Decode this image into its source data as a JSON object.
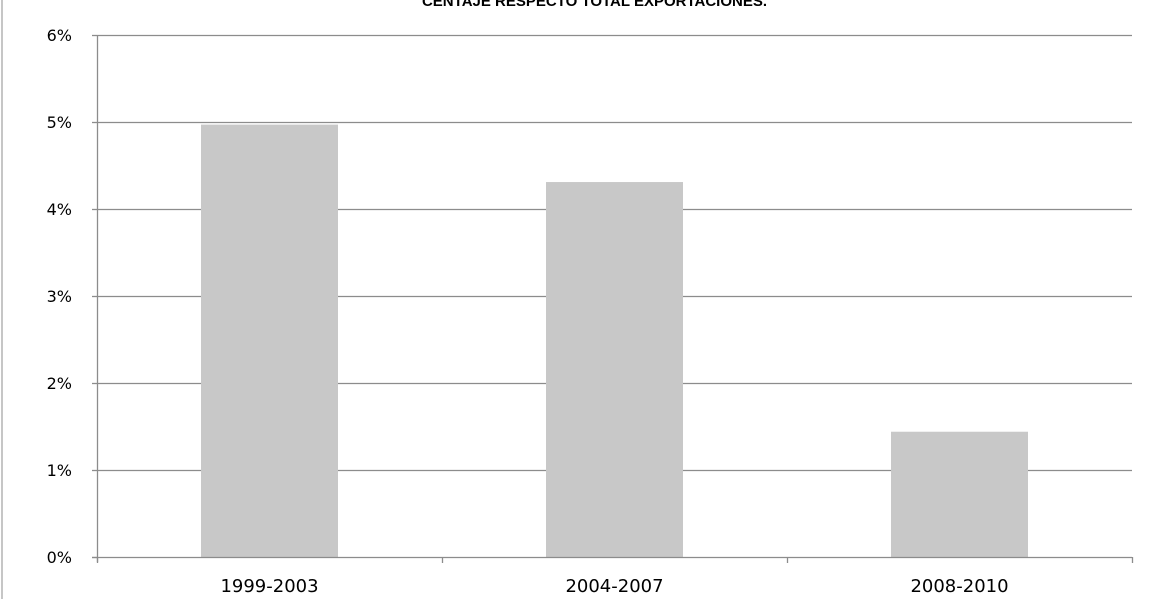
{
  "chart_data": {
    "type": "bar",
    "title": "CENTAJE RESPECTO TOTAL EXPORTACIONES.",
    "categories": [
      "1999-2003",
      "2004-2007",
      "2008-2010"
    ],
    "values": [
      4.97,
      4.31,
      1.44
    ],
    "value_format": "percent",
    "ylim": [
      0,
      6
    ],
    "yticks": [
      0,
      1,
      2,
      3,
      4,
      5,
      6
    ],
    "ytick_labels": [
      "0%",
      "1%",
      "2%",
      "3%",
      "4%",
      "5%",
      "6%"
    ],
    "xlabel": "",
    "ylabel": "",
    "grid": true,
    "legend": "none",
    "colors": {
      "bar": "#c8c8c8",
      "grid": "#8c8c8c",
      "axis": "#8c8c8c",
      "text": "#000000",
      "left_border": "#8c8c8c"
    }
  }
}
